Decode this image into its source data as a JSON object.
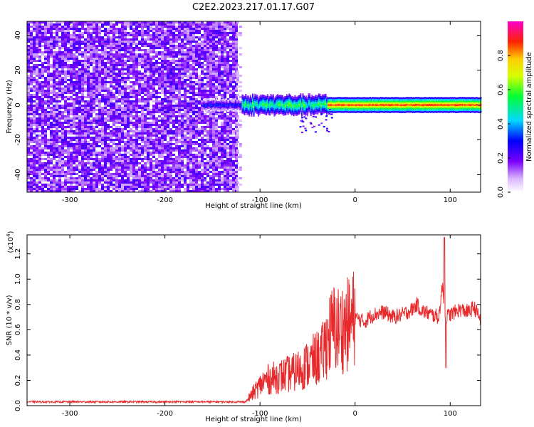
{
  "title": "C2E2.2023.217.01.17.G07",
  "chart_data": [
    {
      "type": "heatmap",
      "xlabel": "Height of straight line (km)",
      "ylabel": "Frequency (Hz)",
      "xlim": [
        -345,
        132
      ],
      "ylim": [
        -50,
        48
      ],
      "xticks": [
        "-300",
        "-200",
        "-100",
        "0",
        "100"
      ],
      "yticks": [
        "-40",
        "-20",
        "0",
        "20",
        "40"
      ],
      "grid": false,
      "colorbar": {
        "label": "Normalized spectral amplitude",
        "range": [
          0,
          1
        ],
        "ticks": [
          "0.0",
          "0.2",
          "0.4",
          "0.6",
          "0.8"
        ]
      },
      "regions": [
        {
          "x": [
            -345,
            -125
          ],
          "description_level": 0.2
        },
        {
          "x": [
            -125,
            -30
          ],
          "center_freq": 0,
          "level": 0.5
        },
        {
          "x": [
            -30,
            132
          ],
          "center_freq": 0,
          "level": 0.85
        }
      ]
    },
    {
      "type": "line",
      "xlabel": "Height of straight line (km)",
      "ylabel": "SNR (10 * v/v)",
      "scale_label": "(x10",
      "scale_exp": "4",
      "xlim": [
        -345,
        132
      ],
      "ylim": [
        0,
        1.35
      ],
      "xticks": [
        "-300",
        "-200",
        "-100",
        "0",
        "100"
      ],
      "yticks": [
        "0.0",
        "0.2",
        "0.4",
        "0.6",
        "0.8",
        "1.0",
        "1.2"
      ],
      "grid": false,
      "series": [
        {
          "color": "#e8292b",
          "x": [
            -345,
            -300,
            -250,
            -200,
            -150,
            -115,
            -105,
            -95,
            -85,
            -75,
            -65,
            -55,
            -45,
            -35,
            -28,
            -22,
            -18,
            -12,
            -5,
            0,
            5,
            10,
            15,
            20,
            30,
            40,
            50,
            60,
            65,
            70,
            80,
            88,
            92,
            95,
            100,
            110,
            120,
            125,
            132
          ],
          "values": [
            0.03,
            0.03,
            0.03,
            0.03,
            0.03,
            0.03,
            0.12,
            0.2,
            0.22,
            0.24,
            0.26,
            0.3,
            0.35,
            0.4,
            0.55,
            0.62,
            0.6,
            0.62,
            0.65,
            0.7,
            0.68,
            0.66,
            0.7,
            0.72,
            0.74,
            0.7,
            0.72,
            0.76,
            0.8,
            0.75,
            0.72,
            0.7,
            0.95,
            0.7,
            0.72,
            0.76,
            0.74,
            0.78,
            0.68
          ]
        }
      ]
    }
  ]
}
